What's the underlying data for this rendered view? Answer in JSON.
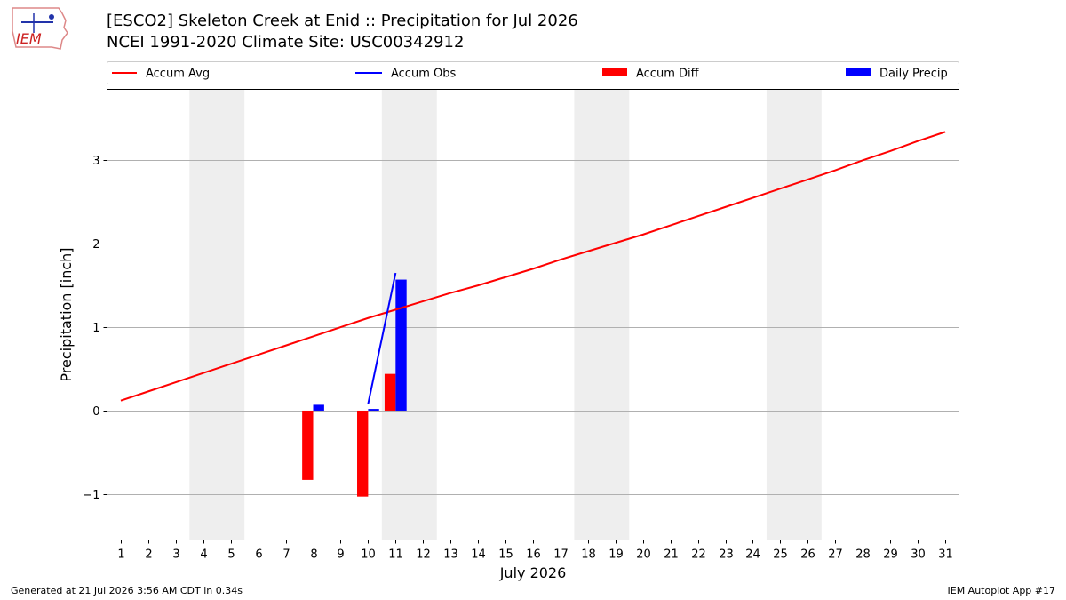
{
  "logo": {
    "text": "IEM"
  },
  "header": {
    "title": "[ESCO2] Skeleton Creek at Enid :: Precipitation for Jul 2026",
    "subtitle": "NCEI 1991-2020 Climate Site: USC00342912"
  },
  "footer": {
    "generated": "Generated at 21 Jul 2026 3:56 AM CDT in 0.34s",
    "app": "IEM Autoplot App #17"
  },
  "chart_data": {
    "type": "bar",
    "xlabel": "July 2026",
    "ylabel": "Precipitation [inch]",
    "xlim": [
      0.5,
      31.5
    ],
    "ylim": [
      -1.55,
      3.85
    ],
    "yticks": [
      -1,
      0,
      1,
      2,
      3
    ],
    "ytick_labels": [
      "−1",
      "0",
      "1",
      "2",
      "3"
    ],
    "x": [
      1,
      2,
      3,
      4,
      5,
      6,
      7,
      8,
      9,
      10,
      11,
      12,
      13,
      14,
      15,
      16,
      17,
      18,
      19,
      20,
      21,
      22,
      23,
      24,
      25,
      26,
      27,
      28,
      29,
      30,
      31
    ],
    "grid": "y",
    "legend": "top, horizontal above plot",
    "weekend_shading": [
      [
        4,
        5
      ],
      [
        11,
        12
      ],
      [
        18,
        19
      ],
      [
        25,
        26
      ]
    ],
    "series": [
      {
        "name": "Accum Avg",
        "kind": "line",
        "color": "#ff0000",
        "x": [
          1,
          2,
          3,
          4,
          5,
          6,
          7,
          8,
          9,
          10,
          11,
          12,
          13,
          14,
          15,
          16,
          17,
          18,
          19,
          20,
          21,
          22,
          23,
          24,
          25,
          26,
          27,
          28,
          29,
          30,
          31
        ],
        "values": [
          0.12,
          0.23,
          0.34,
          0.45,
          0.56,
          0.67,
          0.78,
          0.89,
          1.0,
          1.11,
          1.21,
          1.31,
          1.41,
          1.5,
          1.6,
          1.7,
          1.81,
          1.91,
          2.01,
          2.11,
          2.22,
          2.33,
          2.44,
          2.55,
          2.66,
          2.77,
          2.88,
          3.0,
          3.11,
          3.23,
          3.34
        ]
      },
      {
        "name": "Accum Obs",
        "kind": "line",
        "color": "#0000ff",
        "x": [
          10,
          11
        ],
        "values": [
          0.08,
          1.65
        ]
      },
      {
        "name": "Accum Diff",
        "kind": "bar",
        "color": "#ff0000",
        "x": [
          8,
          10,
          11
        ],
        "values": [
          -0.83,
          -1.03,
          0.44
        ]
      },
      {
        "name": "Daily Precip",
        "kind": "bar",
        "color": "#0000ff",
        "x": [
          8,
          10,
          11
        ],
        "values": [
          0.07,
          0.02,
          1.57
        ]
      }
    ]
  }
}
